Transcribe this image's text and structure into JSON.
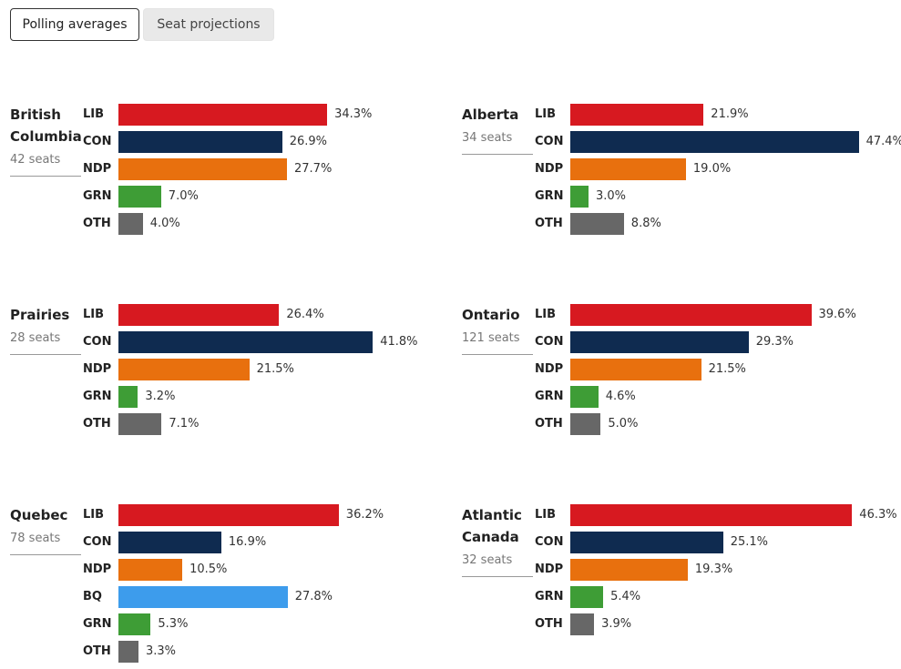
{
  "tabs": [
    {
      "label": "Polling averages",
      "active": true
    },
    {
      "label": "Seat projections",
      "active": false
    }
  ],
  "colors": {
    "LIB": "#d71920",
    "CON": "#0f2b50",
    "NDP": "#e8700e",
    "GRN": "#3e9d36",
    "BQ": "#3d9cec",
    "OTH": "#676767"
  },
  "chart_data": [
    {
      "type": "bar",
      "title": "British Columbia",
      "name_lines": [
        "British",
        "Columbia"
      ],
      "seats": "42 seats",
      "categories": [
        "LIB",
        "CON",
        "NDP",
        "GRN",
        "OTH"
      ],
      "values": [
        34.3,
        26.9,
        27.7,
        7.0,
        4.0
      ],
      "labels": [
        "34.3%",
        "26.9%",
        "27.7%",
        "7.0%",
        "4.0%"
      ]
    },
    {
      "type": "bar",
      "title": "Alberta",
      "name_lines": [
        "Alberta"
      ],
      "seats": "34 seats",
      "categories": [
        "LIB",
        "CON",
        "NDP",
        "GRN",
        "OTH"
      ],
      "values": [
        21.9,
        47.4,
        19.0,
        3.0,
        8.8
      ],
      "labels": [
        "21.9%",
        "47.4%",
        "19.0%",
        "3.0%",
        "8.8%"
      ]
    },
    {
      "type": "bar",
      "title": "Prairies",
      "name_lines": [
        "Prairies"
      ],
      "seats": "28 seats",
      "categories": [
        "LIB",
        "CON",
        "NDP",
        "GRN",
        "OTH"
      ],
      "values": [
        26.4,
        41.8,
        21.5,
        3.2,
        7.1
      ],
      "labels": [
        "26.4%",
        "41.8%",
        "21.5%",
        "3.2%",
        "7.1%"
      ]
    },
    {
      "type": "bar",
      "title": "Ontario",
      "name_lines": [
        "Ontario"
      ],
      "seats": "121 seats",
      "categories": [
        "LIB",
        "CON",
        "NDP",
        "GRN",
        "OTH"
      ],
      "values": [
        39.6,
        29.3,
        21.5,
        4.6,
        5.0
      ],
      "labels": [
        "39.6%",
        "29.3%",
        "21.5%",
        "4.6%",
        "5.0%"
      ]
    },
    {
      "type": "bar",
      "title": "Quebec",
      "name_lines": [
        "Quebec"
      ],
      "seats": "78 seats",
      "categories": [
        "LIB",
        "CON",
        "NDP",
        "BQ",
        "GRN",
        "OTH"
      ],
      "values": [
        36.2,
        16.9,
        10.5,
        27.8,
        5.3,
        3.3
      ],
      "labels": [
        "36.2%",
        "16.9%",
        "10.5%",
        "27.8%",
        "5.3%",
        "3.3%"
      ]
    },
    {
      "type": "bar",
      "title": "Atlantic Canada",
      "name_lines": [
        "Atlantic",
        "Canada"
      ],
      "seats": "32 seats",
      "categories": [
        "LIB",
        "CON",
        "NDP",
        "GRN",
        "OTH"
      ],
      "values": [
        46.3,
        25.1,
        19.3,
        5.4,
        3.9
      ],
      "labels": [
        "46.3%",
        "25.1%",
        "19.3%",
        "5.4%",
        "3.9%"
      ]
    }
  ]
}
